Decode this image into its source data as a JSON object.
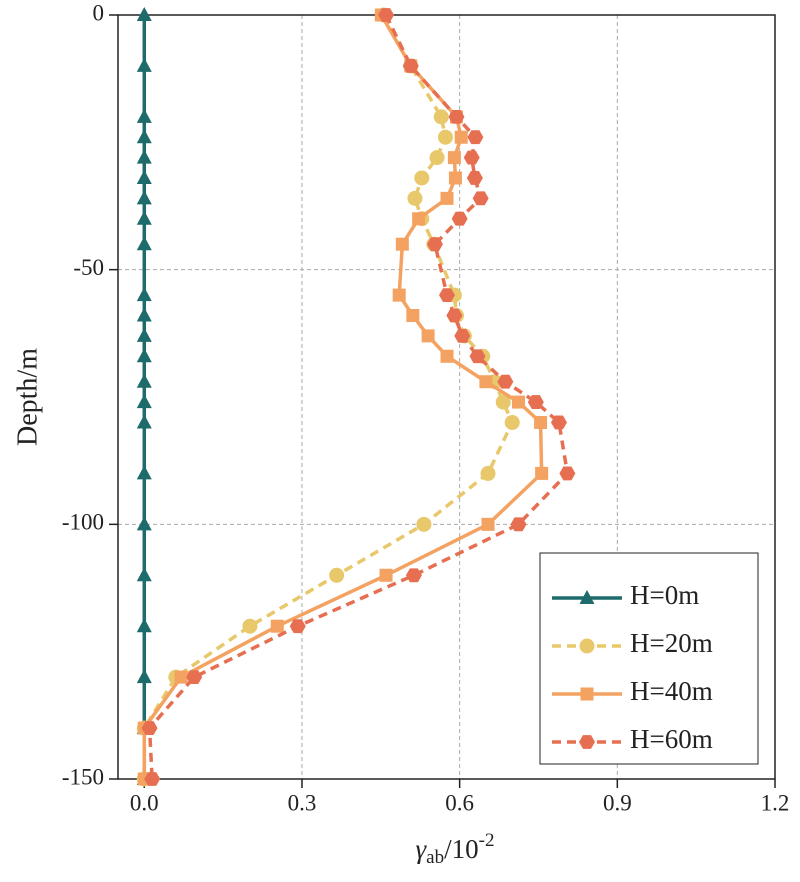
{
  "chart_data": {
    "type": "line",
    "ylabel": "Depth/m",
    "xlabel": {
      "symbol": "γ",
      "subscript": "ab",
      "base": "/10",
      "superscript": "-2"
    },
    "y": [
      0,
      -10,
      -20,
      -24,
      -28,
      -32,
      -36,
      -40,
      -45,
      -55,
      -59,
      -63,
      -67,
      -72,
      -76,
      -80,
      -90,
      -100,
      -110,
      -120,
      -130,
      -140,
      -150
    ],
    "series": [
      {
        "name": "H=0m",
        "color": "#1e6b6b",
        "marker": "triangle",
        "dash": false,
        "values": [
          0,
          0,
          0,
          0,
          0,
          0,
          0,
          0,
          0,
          0,
          0,
          0,
          0,
          0,
          0,
          0,
          0,
          0,
          0,
          0,
          0,
          0,
          0
        ]
      },
      {
        "name": "H=20m",
        "color": "#e8c86a",
        "marker": "circle",
        "dash": true,
        "values": [
          0.455,
          0.507,
          0.565,
          0.573,
          0.557,
          0.528,
          0.515,
          0.528,
          0.551,
          0.59,
          0.594,
          0.609,
          0.644,
          0.667,
          0.683,
          0.7,
          0.654,
          0.532,
          0.366,
          0.201,
          0.06,
          0.0,
          0.0
        ]
      },
      {
        "name": "H=40m",
        "color": "#f4a261",
        "marker": "square",
        "dash": false,
        "values": [
          0.451,
          0.507,
          0.594,
          0.603,
          0.59,
          0.592,
          0.576,
          0.522,
          0.491,
          0.485,
          0.511,
          0.54,
          0.576,
          0.65,
          0.712,
          0.754,
          0.756,
          0.654,
          0.46,
          0.253,
          0.07,
          0.0,
          0.0
        ]
      },
      {
        "name": "H=60m",
        "color": "#e76f51",
        "marker": "hexagon",
        "dash": true,
        "values": [
          0.46,
          0.507,
          0.594,
          0.63,
          0.623,
          0.629,
          0.64,
          0.6,
          0.553,
          0.576,
          0.59,
          0.605,
          0.634,
          0.687,
          0.745,
          0.789,
          0.805,
          0.712,
          0.513,
          0.292,
          0.095,
          0.01,
          0.015
        ]
      }
    ],
    "xlim": [
      -0.05,
      1.2
    ],
    "xticks": [
      {
        "value": 0,
        "label": "0.0"
      },
      0.3,
      0.6,
      0.9,
      1.2
    ],
    "ylim": [
      -150,
      0
    ],
    "yticks": [
      -150,
      -100,
      -50,
      0
    ],
    "grid": true,
    "legend": "lower right"
  }
}
